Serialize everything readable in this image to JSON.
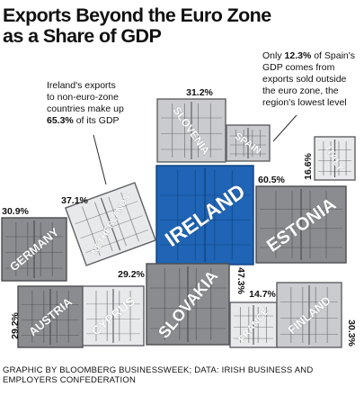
{
  "title": {
    "line1": "Exports Beyond the Euro Zone",
    "line2": "as a Share of GDP"
  },
  "notes": {
    "ireland": {
      "line1": "Ireland's exports",
      "line2": "to non-euro-zone",
      "line3": "countries make up",
      "highlight": "65.3%",
      "tail": "of its GDP"
    },
    "spain": {
      "lead": "Only",
      "highlight": "12.3%",
      "rest1": "of Spain's",
      "line2": "GDP comes from",
      "line3": "exports sold outside",
      "line4": "the euro zone, the",
      "line5": "region's lowest level"
    }
  },
  "source": {
    "line1": "GRAPHIC BY BLOOMBERG BUSINESSWEEK; DATA: IRISH BUSINESS AND",
    "line2": "EMPLOYERS CONFEDERATION"
  },
  "colors": {
    "ireland_fill": "#1f64b5",
    "ireland_stroke": "#0f3f7a",
    "gray_fill": "#8a8c8f",
    "gray_stroke": "#4b4d50",
    "light_fill": "#c9cbce",
    "light_stroke": "#5e6064",
    "pale_fill": "#e8e9ea",
    "line_color": "#2b2b2b"
  },
  "chart_data": {
    "type": "bar",
    "title": "Exports Beyond the Euro Zone as a Share of GDP",
    "encoding": "container size proportional to value",
    "unit": "% of GDP",
    "categories": [
      "Ireland",
      "Estonia",
      "Slovakia",
      "Slovenia",
      "Germany",
      "Netherlands",
      "Finland",
      "Austria",
      "Cyprus",
      "Italy",
      "Spain",
      "France"
    ],
    "values": [
      65.3,
      60.5,
      47.3,
      31.2,
      30.9,
      37.1,
      30.3,
      29.2,
      29.2,
      16.6,
      12.3,
      14.7
    ],
    "labels": [
      "",
      "60.5%",
      "47.3%",
      "31.2%",
      "30.9%",
      "37.1%",
      "30.3%",
      "29.2%",
      "29.2%",
      "16.6%",
      "",
      "14.7%"
    ],
    "names": [
      "IRELAND",
      "ESTONIA",
      "SLOVAKIA",
      "SLOVENIA",
      "GERMANY",
      "NETHERLANDS",
      "FINLAND",
      "AUSTRIA",
      "CYPRUS",
      "ITALY",
      "SPAIN",
      "FRANCE"
    ]
  }
}
